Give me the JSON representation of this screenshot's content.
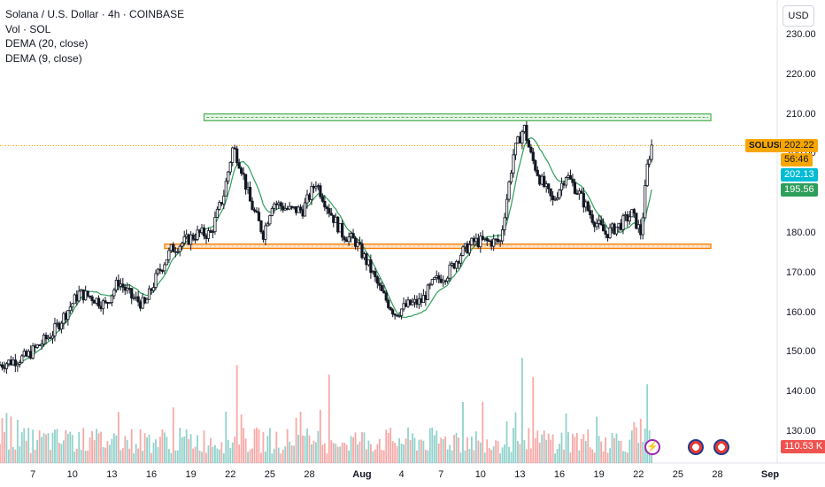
{
  "legend": {
    "title": "Solana / U.S. Dollar · 4h · COINBASE",
    "line2": "Vol · SOL",
    "line3": "DEMA (20, close)",
    "line4": "DEMA (9, close)"
  },
  "currency_button": "USD",
  "price_tags": {
    "symbol": "SOLUSD",
    "last_price": "202.22",
    "countdown": "56:46",
    "dema9": "202.13",
    "dema20": "195.56",
    "volume": "110.53 K"
  },
  "colors": {
    "up": "#26a69a",
    "down": "#ef5350",
    "candle": "#131722",
    "dema": "#2e9e5b",
    "resistance": "#4caf50",
    "support": "#f57c00",
    "last_price_tag": "#f7a600",
    "dema9_tag": "#00bcd4",
    "dema20_tag": "#2e9e5b"
  },
  "chart_data": {
    "type": "candlestick",
    "symbol": "SOLUSD",
    "exchange": "COINBASE",
    "timeframe": "4h",
    "y_ticks": [
      "230.00",
      "220.00",
      "210.00",
      "200.00",
      "180.00",
      "170.00",
      "160.00",
      "150.00",
      "140.00",
      "130.00"
    ],
    "ylim": [
      125,
      234
    ],
    "x_ticks": [
      {
        "label": "7",
        "day": 7
      },
      {
        "label": "10",
        "day": 10
      },
      {
        "label": "13",
        "day": 13
      },
      {
        "label": "16",
        "day": 16
      },
      {
        "label": "19",
        "day": 19
      },
      {
        "label": "22",
        "day": 22
      },
      {
        "label": "25",
        "day": 25
      },
      {
        "label": "28",
        "day": 28
      },
      {
        "label": "Aug",
        "day": 32,
        "bold": true
      },
      {
        "label": "4",
        "day": 35
      },
      {
        "label": "7",
        "day": 38
      },
      {
        "label": "10",
        "day": 41
      },
      {
        "label": "13",
        "day": 44
      },
      {
        "label": "16",
        "day": 47
      },
      {
        "label": "19",
        "day": 50
      },
      {
        "label": "22",
        "day": 53
      },
      {
        "label": "25",
        "day": 56
      },
      {
        "label": "28",
        "day": 59
      },
      {
        "label": "Sep",
        "day": 63,
        "bold": true
      }
    ],
    "price_path": [
      [
        4.5,
        147
      ],
      [
        5.5,
        148
      ],
      [
        6.5,
        149
      ],
      [
        7.5,
        152
      ],
      [
        8.5,
        155
      ],
      [
        9.5,
        160
      ],
      [
        10.5,
        165
      ],
      [
        11.5,
        164
      ],
      [
        12.5,
        162
      ],
      [
        13.5,
        168
      ],
      [
        14.5,
        164
      ],
      [
        15.5,
        162
      ],
      [
        16.5,
        170
      ],
      [
        17.5,
        176
      ],
      [
        18.5,
        178
      ],
      [
        19.5,
        180
      ],
      [
        20.5,
        180
      ],
      [
        21.5,
        190
      ],
      [
        22.2,
        202
      ],
      [
        22.8,
        197
      ],
      [
        23.5,
        188
      ],
      [
        24.5,
        180
      ],
      [
        25.2,
        188
      ],
      [
        26.5,
        186
      ],
      [
        27.5,
        186
      ],
      [
        28.5,
        193
      ],
      [
        29.5,
        186
      ],
      [
        30.5,
        180
      ],
      [
        31.5,
        178
      ],
      [
        32.5,
        172
      ],
      [
        33.5,
        165
      ],
      [
        34.5,
        160
      ],
      [
        35.5,
        162
      ],
      [
        36.5,
        163
      ],
      [
        37.5,
        168
      ],
      [
        38.5,
        170
      ],
      [
        39.5,
        175
      ],
      [
        40.5,
        178
      ],
      [
        41.5,
        178
      ],
      [
        42.5,
        178
      ],
      [
        43.5,
        200
      ],
      [
        44.3,
        207
      ],
      [
        44.8,
        200
      ],
      [
        45.5,
        194
      ],
      [
        46.5,
        188
      ],
      [
        47.5,
        195
      ],
      [
        48.5,
        190
      ],
      [
        49.5,
        184
      ],
      [
        50.5,
        180
      ],
      [
        51.5,
        182
      ],
      [
        52.5,
        185
      ],
      [
        53.2,
        180
      ],
      [
        53.7,
        198
      ],
      [
        54.0,
        202.2
      ]
    ],
    "resistance_zone": [
      208.5,
      210.2
    ],
    "support_zone": [
      176.3,
      177.4
    ],
    "last_price": 202.22,
    "dema_20_last": 195.56,
    "dema_9_last": 202.13,
    "volume_last": "110.53 K",
    "volume_spikes": [
      {
        "day": 22.5,
        "level": 0.82
      },
      {
        "day": 29.5,
        "level": 0.74
      },
      {
        "day": 44.2,
        "level": 0.88
      },
      {
        "day": 45.0,
        "level": 0.72
      },
      {
        "day": 53.6,
        "level": 0.66
      }
    ]
  }
}
